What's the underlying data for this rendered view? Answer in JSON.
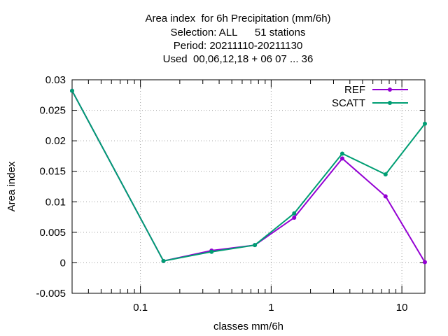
{
  "chart_data": {
    "type": "line",
    "title_lines": [
      "Area index  for 6h Precipitation (mm/6h)",
      "Selection: ALL      51 stations",
      "Period: 20211110-20211130",
      "Used  00,06,12,18 + 06 07 ... 36"
    ],
    "xlabel": "classes mm/6h",
    "ylabel": "Area index",
    "x_scale": "log",
    "xlim": [
      0.03,
      15
    ],
    "ylim": [
      -0.005,
      0.03
    ],
    "yticks": [
      "-0.005",
      "0",
      "0.005",
      "0.01",
      "0.015",
      "0.02",
      "0.025",
      "0.03"
    ],
    "ytick_values": [
      -0.005,
      0,
      0.005,
      0.01,
      0.015,
      0.02,
      0.025,
      0.03
    ],
    "xticks": [
      "0.1",
      "1",
      "10"
    ],
    "xtick_values": [
      0.1,
      1,
      10
    ],
    "grid": true,
    "legend_position": "top-right",
    "x": [
      0.03,
      0.15,
      0.35,
      0.75,
      1.5,
      3.5,
      7.5,
      15
    ],
    "series": [
      {
        "name": "REF",
        "color": "#9400d3",
        "values": [
          0.0282,
          0.0003,
          0.002,
          0.0029,
          0.0074,
          0.0171,
          0.0109,
          0.0001
        ]
      },
      {
        "name": "SCATT",
        "color": "#009e73",
        "values": [
          0.0282,
          0.0003,
          0.0018,
          0.0029,
          0.0081,
          0.0179,
          0.0145,
          0.0228
        ]
      }
    ]
  }
}
